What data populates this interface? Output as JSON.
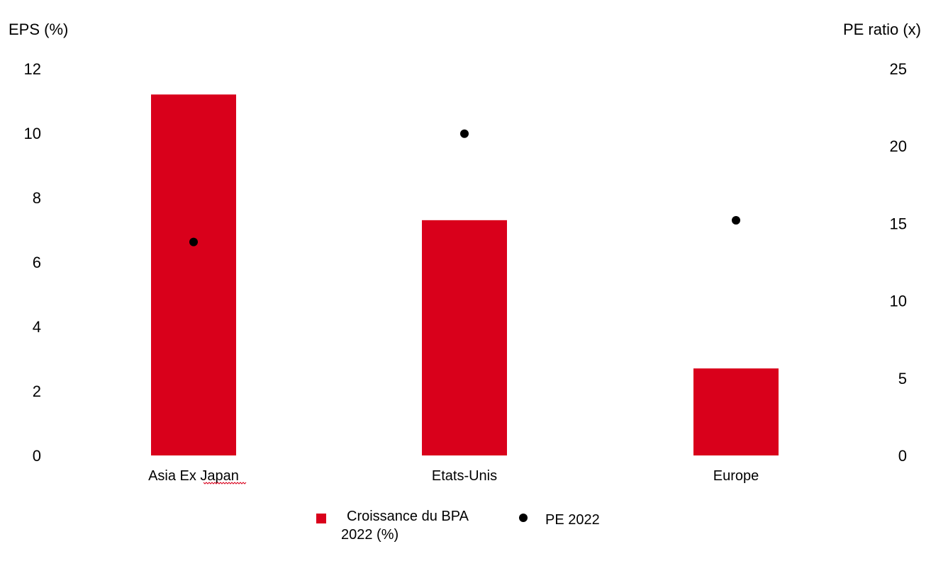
{
  "chart_data": {
    "type": "bar",
    "title": "",
    "categories": [
      "Asia Ex Japan",
      "Etats-Unis",
      "Europe"
    ],
    "series": [
      {
        "name": "Croissance du BPA 2022 (%)",
        "type": "bar",
        "axis": "left",
        "values": [
          11.2,
          7.3,
          2.7
        ]
      },
      {
        "name": "PE 2022",
        "type": "scatter",
        "axis": "right",
        "values": [
          13.8,
          20.8,
          15.2
        ]
      }
    ],
    "y_left": {
      "label": "EPS (%)",
      "ylim": [
        0,
        12
      ],
      "ticks": [
        0,
        2,
        4,
        6,
        8,
        10,
        12
      ]
    },
    "y_right": {
      "label": "PE ratio (x)",
      "ylim": [
        0,
        25
      ],
      "ticks": [
        0,
        5,
        10,
        15,
        20,
        25
      ]
    },
    "legend": {
      "placement": "bottom",
      "bar_label_line1": "Croissance du BPA",
      "bar_label_line2": "2022 (%)",
      "dot_label": "PE 2022"
    },
    "grid": false,
    "colors": {
      "bar": "#d9001b",
      "dot": "#000000"
    }
  }
}
